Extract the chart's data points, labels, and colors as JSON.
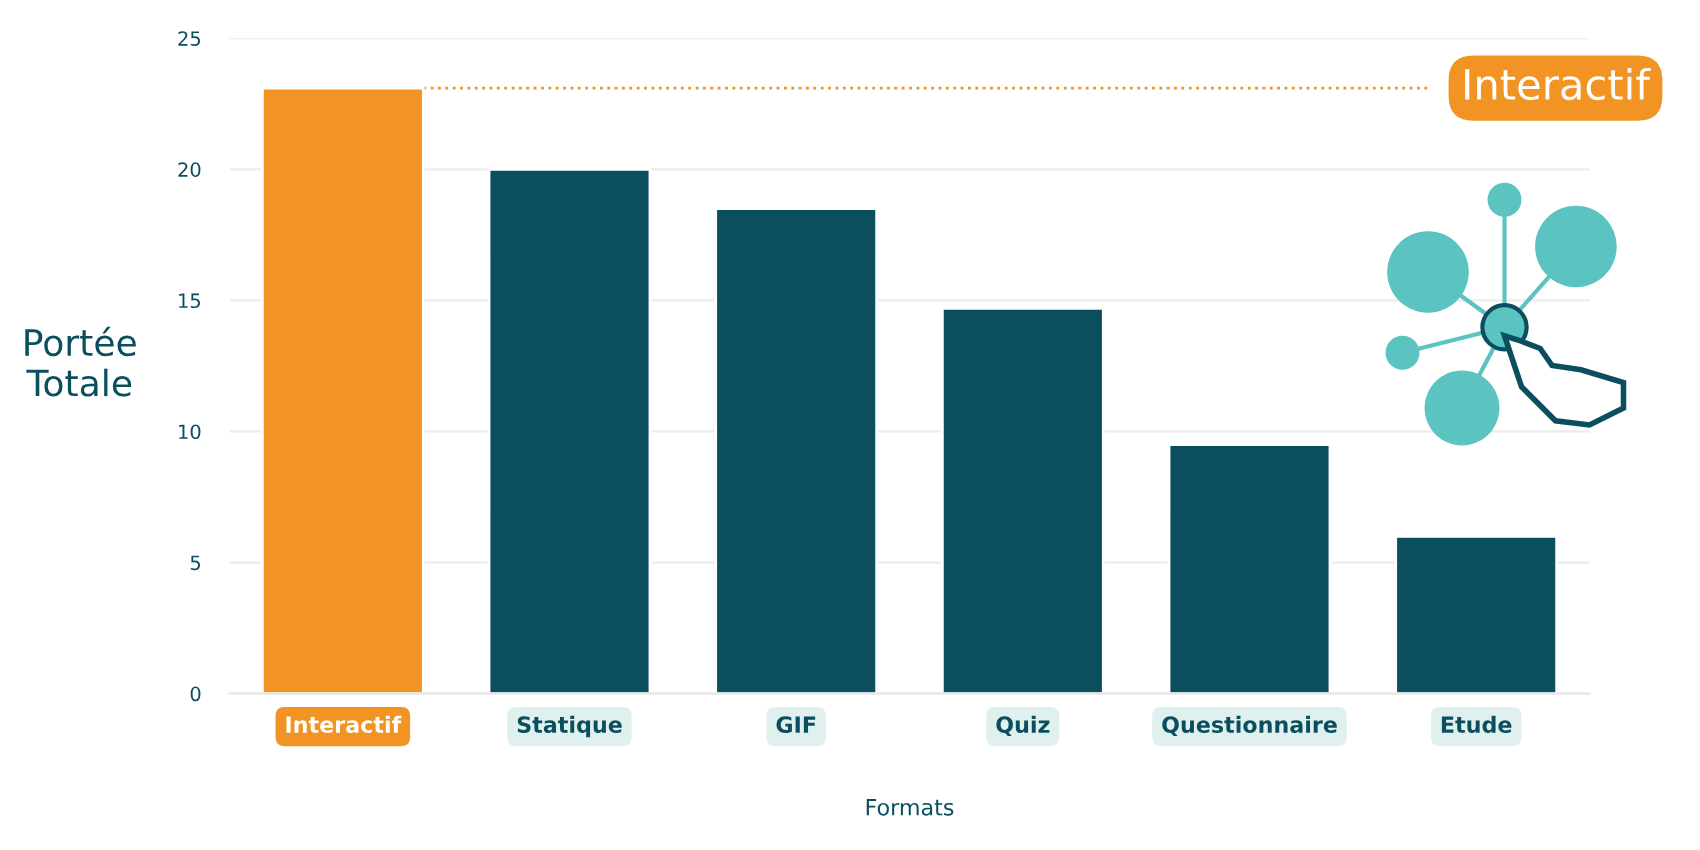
{
  "chart_data": {
    "type": "bar",
    "xlabel": "Formats",
    "ylabel": "Portée Totale",
    "categories": [
      "Interactif",
      "Statique",
      "GIF",
      "Quiz",
      "Questionnaire",
      "Etude"
    ],
    "values": [
      23.1,
      20,
      18.5,
      14.7,
      9.5,
      6.0
    ],
    "colors": [
      "#f29423",
      "#0b4f5f",
      "#0b4f5f",
      "#0b4f5f",
      "#0b4f5f",
      "#0b4f5f"
    ],
    "ylim": [
      0,
      25
    ],
    "yticks": [
      0,
      5,
      10,
      15,
      20,
      25
    ],
    "grid": "y",
    "ref_lines": [
      {
        "axis": "y",
        "value": 23.1,
        "label": "Interactif",
        "color": "#f29423",
        "line_style": "dotted"
      }
    ]
  }
}
